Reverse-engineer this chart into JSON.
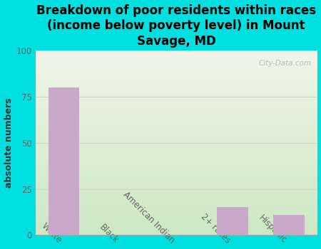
{
  "title": "Breakdown of poor residents within races\n(income below poverty level) in Mount\nSavage, MD",
  "categories": [
    "White",
    "Black",
    "American Indian",
    "2+ races",
    "Hispanic"
  ],
  "values": [
    80,
    0,
    0,
    15,
    11
  ],
  "bar_color": "#c9a8c9",
  "ylabel": "absolute numbers",
  "ylim": [
    0,
    100
  ],
  "yticks": [
    0,
    25,
    50,
    75,
    100
  ],
  "background_color": "#00e0e0",
  "plot_bg_color_top": "#cde8c5",
  "plot_bg_color_bottom": "#f0f5e8",
  "watermark": "City-Data.com",
  "title_fontsize": 12,
  "ylabel_fontsize": 9,
  "tick_fontsize": 8.5,
  "grid_color": "#d0d8c8"
}
